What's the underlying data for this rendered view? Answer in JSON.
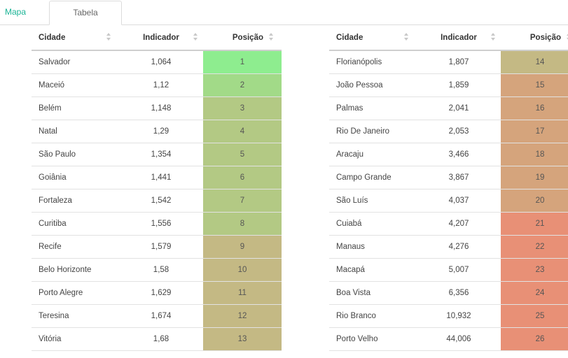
{
  "tabs": [
    {
      "label": "Mapa"
    },
    {
      "label": "Tabela"
    }
  ],
  "table": {
    "headers": {
      "city": "Cidade",
      "indicator": "Indicador",
      "position": "Posição"
    },
    "left_rows": [
      {
        "city": "Salvador",
        "indicator": "1,064",
        "position": "1",
        "color": "#8eed8f"
      },
      {
        "city": "Maceió",
        "indicator": "1,12",
        "position": "2",
        "color": "#a2da88"
      },
      {
        "city": "Belém",
        "indicator": "1,148",
        "position": "3",
        "color": "#b3c984"
      },
      {
        "city": "Natal",
        "indicator": "1,29",
        "position": "4",
        "color": "#b3c984"
      },
      {
        "city": "São Paulo",
        "indicator": "1,354",
        "position": "5",
        "color": "#b3c984"
      },
      {
        "city": "Goiânia",
        "indicator": "1,441",
        "position": "6",
        "color": "#b3c984"
      },
      {
        "city": "Fortaleza",
        "indicator": "1,542",
        "position": "7",
        "color": "#b3c984"
      },
      {
        "city": "Curitiba",
        "indicator": "1,556",
        "position": "8",
        "color": "#b3c984"
      },
      {
        "city": "Recife",
        "indicator": "1,579",
        "position": "9",
        "color": "#c4b984"
      },
      {
        "city": "Belo Horizonte",
        "indicator": "1,58",
        "position": "10",
        "color": "#c4b984"
      },
      {
        "city": "Porto Alegre",
        "indicator": "1,629",
        "position": "11",
        "color": "#c4b984"
      },
      {
        "city": "Teresina",
        "indicator": "1,674",
        "position": "12",
        "color": "#c4b984"
      },
      {
        "city": "Vitória",
        "indicator": "1,68",
        "position": "13",
        "color": "#c4b984"
      }
    ],
    "right_rows": [
      {
        "city": "Florianópolis",
        "indicator": "1,807",
        "position": "14",
        "color": "#c4b984"
      },
      {
        "city": "João Pessoa",
        "indicator": "1,859",
        "position": "15",
        "color": "#d5a47c"
      },
      {
        "city": "Palmas",
        "indicator": "2,041",
        "position": "16",
        "color": "#d5a47c"
      },
      {
        "city": "Rio De Janeiro",
        "indicator": "2,053",
        "position": "17",
        "color": "#d5a47c"
      },
      {
        "city": "Aracaju",
        "indicator": "3,466",
        "position": "18",
        "color": "#d5a47c"
      },
      {
        "city": "Campo Grande",
        "indicator": "3,867",
        "position": "19",
        "color": "#d5a47c"
      },
      {
        "city": "São Luís",
        "indicator": "4,037",
        "position": "20",
        "color": "#d5a47c"
      },
      {
        "city": "Cuiabá",
        "indicator": "4,207",
        "position": "21",
        "color": "#e89076"
      },
      {
        "city": "Manaus",
        "indicator": "4,276",
        "position": "22",
        "color": "#e89076"
      },
      {
        "city": "Macapá",
        "indicator": "5,007",
        "position": "23",
        "color": "#e89076"
      },
      {
        "city": "Boa Vista",
        "indicator": "6,356",
        "position": "24",
        "color": "#e89076"
      },
      {
        "city": "Rio Branco",
        "indicator": "10,932",
        "position": "25",
        "color": "#e89076"
      },
      {
        "city": "Porto Velho",
        "indicator": "44,006",
        "position": "26",
        "color": "#e89076"
      }
    ]
  }
}
